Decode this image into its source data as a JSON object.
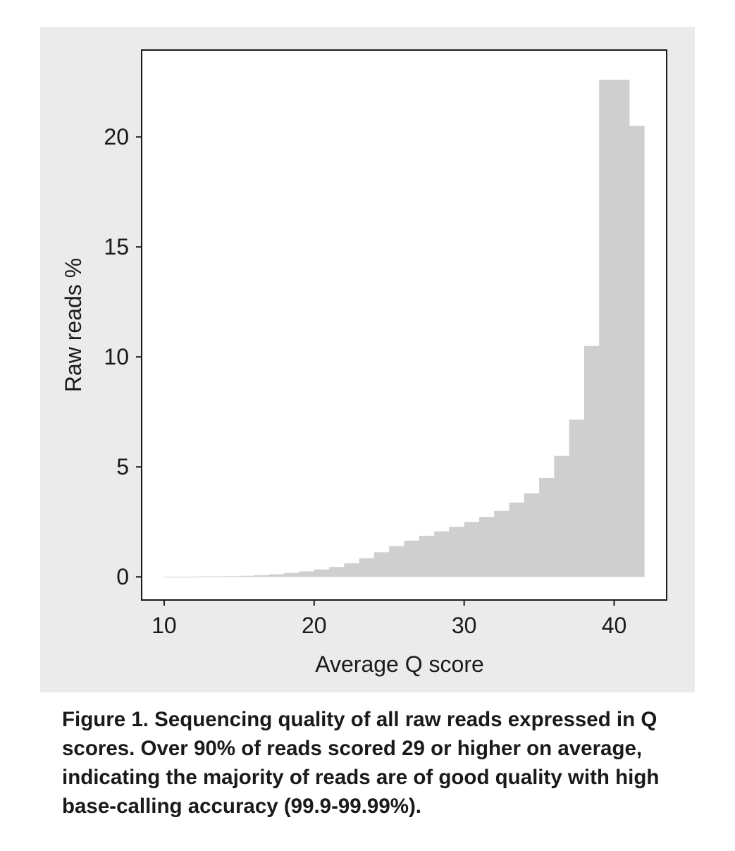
{
  "chart_data": {
    "type": "bar",
    "bar_color": "#cfcfcf",
    "panel_color": "#ebebeb",
    "plot_background": "#ffffff",
    "bin_width": 1,
    "x": [
      10,
      11,
      12,
      13,
      14,
      15,
      16,
      17,
      18,
      19,
      20,
      21,
      22,
      23,
      24,
      25,
      26,
      27,
      28,
      29,
      30,
      31,
      32,
      33,
      34,
      35,
      36,
      37,
      38,
      39,
      40,
      41
    ],
    "values": [
      0.01,
      0.01,
      0.02,
      0.02,
      0.03,
      0.05,
      0.08,
      0.12,
      0.18,
      0.25,
      0.34,
      0.45,
      0.62,
      0.85,
      1.12,
      1.4,
      1.65,
      1.87,
      2.07,
      2.28,
      2.5,
      2.73,
      3.0,
      3.38,
      3.8,
      4.5,
      5.5,
      7.15,
      10.5,
      22.6,
      22.6,
      20.5
    ],
    "xlabel": "Average Q score",
    "ylabel": "Raw reads %",
    "xticks": [
      10,
      20,
      30,
      40
    ],
    "yticks": [
      0,
      5,
      10,
      15,
      20
    ],
    "xlim": [
      8.5,
      43.5
    ],
    "ylim": [
      -1.05,
      23.95
    ],
    "grid": false,
    "legend": "none"
  },
  "caption": {
    "text": "Figure 1. Sequencing quality of all raw reads expressed in Q scores. Over 90% of reads scored 29 or higher on average, indicating the majority of reads are of good quality with high base-calling accuracy (99.9-99.99%)."
  }
}
